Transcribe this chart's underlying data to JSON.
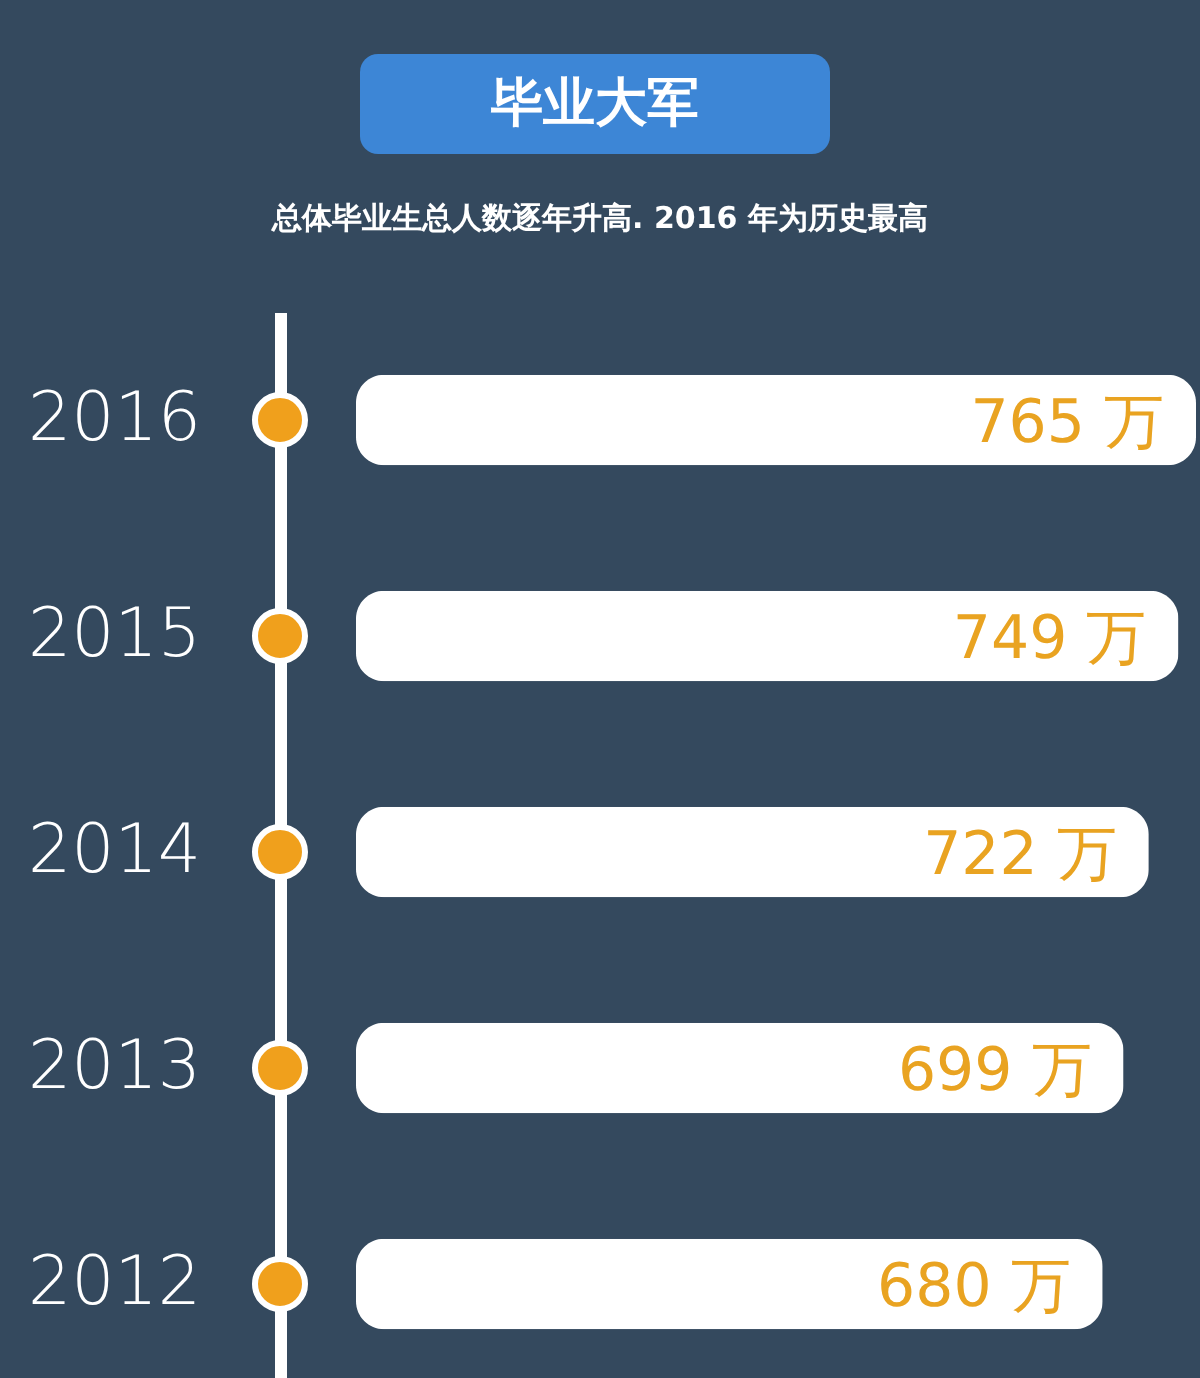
{
  "chart_data": {
    "type": "bar",
    "orientation": "horizontal",
    "title": "毕业大军",
    "subtitle": "总体毕业生总人数逐年升高. 2016 年为历史最高",
    "categories": [
      "2016",
      "2015",
      "2014",
      "2013",
      "2012"
    ],
    "values": [
      765,
      749,
      722,
      699,
      680
    ],
    "value_labels": [
      "765 万",
      "749 万",
      "722 万",
      "699 万",
      "680 万"
    ],
    "color": "#ffffff",
    "tick_labels": "y"
  }
}
